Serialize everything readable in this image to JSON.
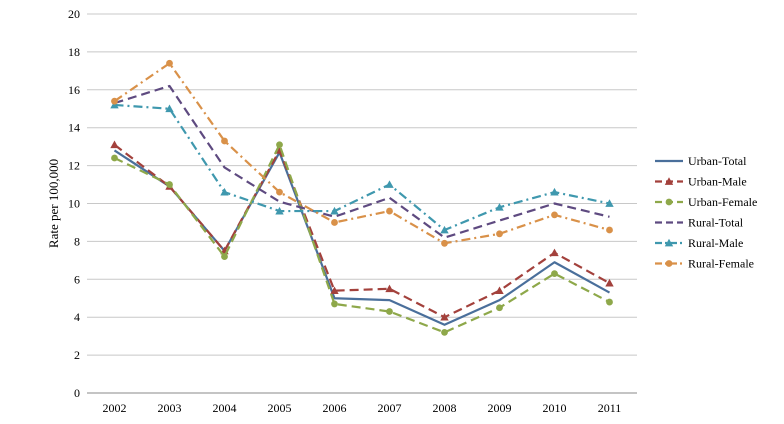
{
  "chart_data": {
    "type": "line",
    "ylabel": "Rate per 100,000",
    "ylim": [
      0,
      20
    ],
    "yticks": [
      0,
      2,
      4,
      6,
      8,
      10,
      12,
      14,
      16,
      18,
      20
    ],
    "categories": [
      "2002",
      "2003",
      "2004",
      "2005",
      "2006",
      "2007",
      "2008",
      "2009",
      "2010",
      "2011"
    ],
    "grid": "horizontal",
    "legend": "right",
    "series": [
      {
        "name": "Urban-Total",
        "color": "#4a6f9b",
        "dash": "solid",
        "marker": "none",
        "values": [
          12.8,
          10.9,
          7.5,
          12.7,
          5.0,
          4.9,
          3.6,
          4.9,
          6.9,
          5.3
        ]
      },
      {
        "name": "Urban-Male",
        "color": "#a3413c",
        "dash": "dash",
        "marker": "triangle",
        "values": [
          13.1,
          10.9,
          7.5,
          12.8,
          5.4,
          5.5,
          4.0,
          5.4,
          7.4,
          5.8
        ]
      },
      {
        "name": "Urban-Female",
        "color": "#8ea84a",
        "dash": "dash",
        "marker": "circle",
        "values": [
          12.4,
          11.0,
          7.2,
          13.1,
          4.7,
          4.3,
          3.2,
          4.5,
          6.3,
          4.8
        ]
      },
      {
        "name": "Rural-Total",
        "color": "#5e4a80",
        "dash": "dash",
        "marker": "none",
        "values": [
          15.3,
          16.2,
          11.9,
          10.1,
          9.3,
          10.3,
          8.2,
          9.1,
          10.0,
          9.3
        ]
      },
      {
        "name": "Rural-Male",
        "color": "#3f98ae",
        "dash": "dashdot",
        "marker": "triangle",
        "values": [
          15.2,
          15.0,
          10.6,
          9.6,
          9.6,
          11.0,
          8.6,
          9.8,
          10.6,
          10.0
        ]
      },
      {
        "name": "Rural-Female",
        "color": "#d99149",
        "dash": "dashdot",
        "marker": "circle",
        "values": [
          15.4,
          17.4,
          13.3,
          10.6,
          9.0,
          9.6,
          7.9,
          8.4,
          9.4,
          8.6
        ]
      }
    ]
  }
}
